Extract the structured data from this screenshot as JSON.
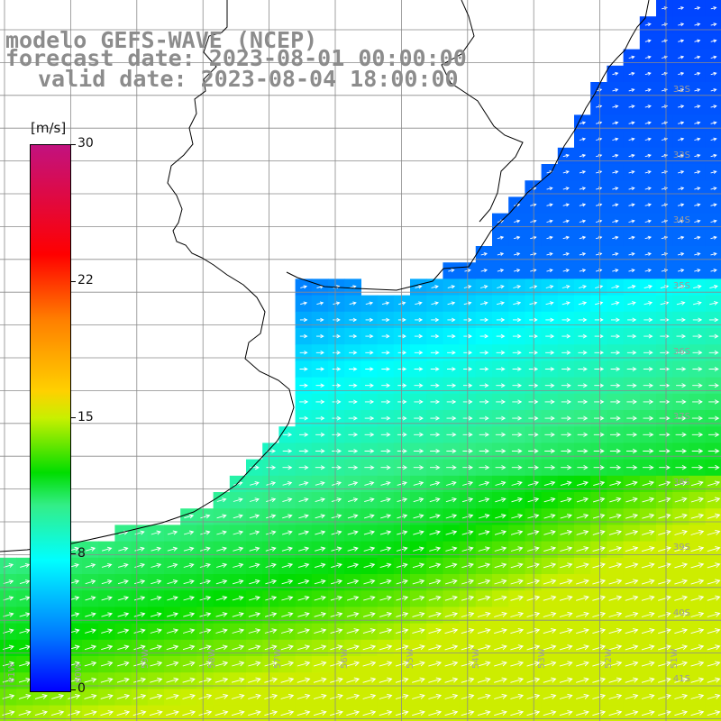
{
  "title": {
    "model": "modelo GEFS-WAVE (NCEP)",
    "forecast": "forecast date: 2023-08-01 00:00:00",
    "valid": "valid date: 2023-08-04 18:00:00"
  },
  "colorbar": {
    "units": "[m/s]",
    "labels": [
      {
        "text": "30",
        "value": 30
      },
      {
        "text": "22",
        "value": 22
      },
      {
        "text": "15",
        "value": 15
      },
      {
        "text": "8",
        "value": 8
      },
      {
        "text": "0",
        "value": 0
      }
    ],
    "colors": [
      "#0000ff",
      "#0077ff",
      "#00ffff",
      "#33ee88",
      "#00dd00",
      "#c8f000",
      "#ffd000",
      "#ff7f00",
      "#ff0000",
      "#c2127f"
    ]
  },
  "lat_labels": [
    "32S",
    "33S",
    "34S",
    "35S",
    "36S",
    "37S",
    "38S",
    "39S",
    "40S",
    "41S"
  ],
  "lon_labels": [
    "61W",
    "60W",
    "59W",
    "58W",
    "57W",
    "56W",
    "55W",
    "54W",
    "53W",
    "52W",
    "51W"
  ],
  "map_style": {
    "land": "#ffffff",
    "coast": "#000000",
    "grid": "#8a8a8a",
    "arrow": "#ffffff"
  }
}
